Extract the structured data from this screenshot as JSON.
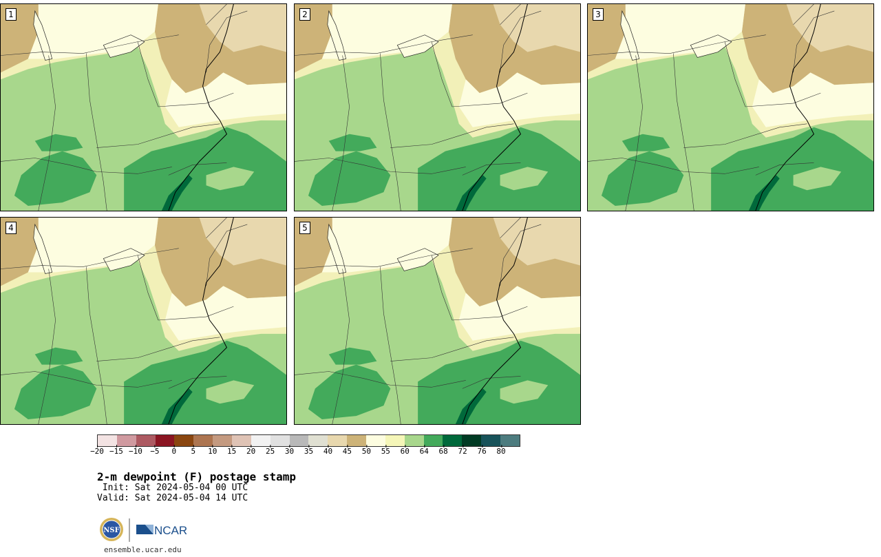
{
  "panels": [
    {
      "label": "1"
    },
    {
      "label": "2"
    },
    {
      "label": "3"
    },
    {
      "label": "4"
    },
    {
      "label": "5"
    }
  ],
  "legend": {
    "colors": [
      "#f3e3e3",
      "#d09aa0",
      "#ad5a62",
      "#8b1522",
      "#8a4610",
      "#ad7550",
      "#c49a80",
      "#dfc3b5",
      "#f2f2f2",
      "#e1e1e1",
      "#b9b9b9",
      "#e0e0d2",
      "#e8d8ae",
      "#cdb378",
      "#fdfde0",
      "#f5f6b8",
      "#a8d78c",
      "#43aa5b",
      "#00693b",
      "#013b24",
      "#18535a",
      "#4d7c7f"
    ],
    "ticks": [
      "−20",
      "−15",
      "−10",
      "−5",
      "0",
      "5",
      "10",
      "15",
      "20",
      "25",
      "30",
      "35",
      "40",
      "45",
      "50",
      "55",
      "60",
      "64",
      "68",
      "72",
      "76",
      "80"
    ]
  },
  "title": "2-m dewpoint (F) postage stamp",
  "init": " Init: Sat 2024-05-04 00 UTC",
  "valid": "Valid: Sat 2024-05-04 14 UTC",
  "logos": {
    "nsf": "NSF",
    "ncar": "NCAR"
  },
  "footer": "ensemble.ucar.edu"
}
